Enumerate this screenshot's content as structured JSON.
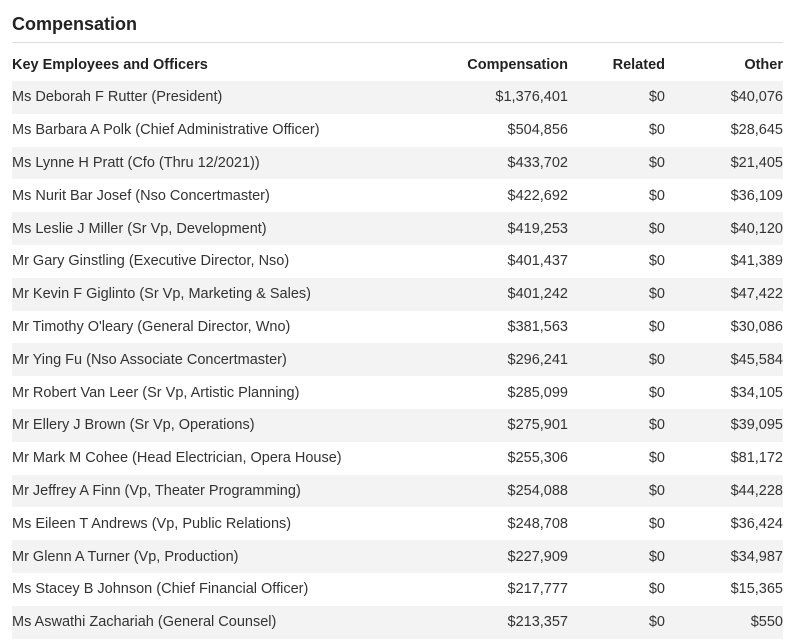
{
  "header": {
    "title": "Compensation"
  },
  "table": {
    "columns": [
      "Key Employees and Officers",
      "Compensation",
      "Related",
      "Other"
    ],
    "rows": [
      [
        "Ms Deborah F Rutter (President)",
        "$1,376,401",
        "$0",
        "$40,076"
      ],
      [
        "Ms Barbara A Polk (Chief Administrative Officer)",
        "$504,856",
        "$0",
        "$28,645"
      ],
      [
        "Ms Lynne H Pratt (Cfo (Thru 12/2021))",
        "$433,702",
        "$0",
        "$21,405"
      ],
      [
        "Ms Nurit Bar Josef (Nso Concertmaster)",
        "$422,692",
        "$0",
        "$36,109"
      ],
      [
        "Ms Leslie J Miller (Sr Vp, Development)",
        "$419,253",
        "$0",
        "$40,120"
      ],
      [
        "Mr Gary Ginstling (Executive Director, Nso)",
        "$401,437",
        "$0",
        "$41,389"
      ],
      [
        "Mr Kevin F Giglinto (Sr Vp, Marketing & Sales)",
        "$401,242",
        "$0",
        "$47,422"
      ],
      [
        "Mr Timothy O'leary (General Director, Wno)",
        "$381,563",
        "$0",
        "$30,086"
      ],
      [
        "Mr Ying Fu (Nso Associate Concertmaster)",
        "$296,241",
        "$0",
        "$45,584"
      ],
      [
        "Mr Robert Van Leer (Sr Vp, Artistic Planning)",
        "$285,099",
        "$0",
        "$34,105"
      ],
      [
        "Mr Ellery J Brown (Sr Vp, Operations)",
        "$275,901",
        "$0",
        "$39,095"
      ],
      [
        "Mr Mark M Cohee (Head Electrician, Opera House)",
        "$255,306",
        "$0",
        "$81,172"
      ],
      [
        "Mr Jeffrey A Finn (Vp, Theater Programming)",
        "$254,088",
        "$0",
        "$44,228"
      ],
      [
        "Ms Eileen T Andrews (Vp, Public Relations)",
        "$248,708",
        "$0",
        "$36,424"
      ],
      [
        "Mr Glenn A Turner (Vp, Production)",
        "$227,909",
        "$0",
        "$34,987"
      ],
      [
        "Ms Stacey B Johnson (Chief Financial Officer)",
        "$217,777",
        "$0",
        "$15,365"
      ],
      [
        "Ms Aswathi Zachariah (General Counsel)",
        "$213,357",
        "$0",
        "$550"
      ]
    ]
  }
}
